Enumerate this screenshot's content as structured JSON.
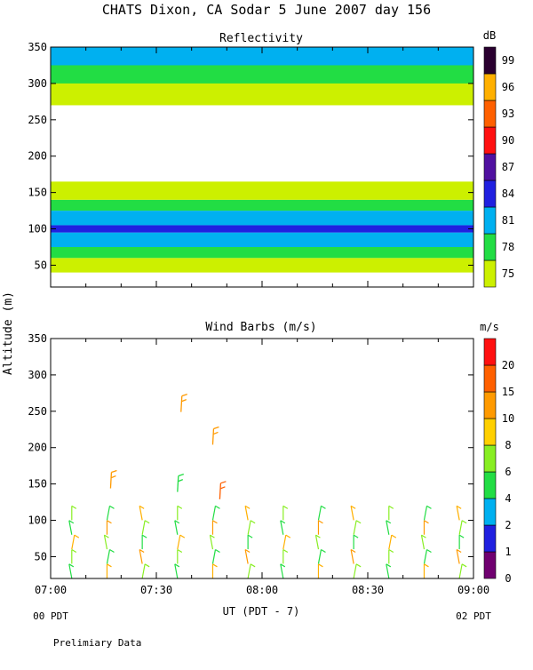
{
  "title": "CHATS Dixon, CA  Sodar    5 June 2007   day 156",
  "footer_note": "Prelimiary Data",
  "chart_data": [
    {
      "type": "heatmap",
      "title": "Reflectivity",
      "colorbar_unit": "dB",
      "x_ticks": [
        "07:00",
        "07:30",
        "08:00",
        "08:30",
        "09:00"
      ],
      "x_range": [
        "07:00",
        "09:00"
      ],
      "y_ticks": [
        50,
        100,
        150,
        200,
        250,
        300,
        350
      ],
      "ylim": [
        20,
        350
      ],
      "colorbar_levels": [
        {
          "label": "75",
          "color": "#ccf000"
        },
        {
          "label": "78",
          "color": "#22dd44"
        },
        {
          "label": "81",
          "color": "#00b0f0"
        },
        {
          "label": "84",
          "color": "#2020e0"
        },
        {
          "label": "87",
          "color": "#5010a0"
        },
        {
          "label": "90",
          "color": "#ff1010"
        },
        {
          "label": "93",
          "color": "#ff6000"
        },
        {
          "label": "96",
          "color": "#ffb000"
        },
        {
          "label": "99",
          "color": "#2a0030"
        }
      ],
      "bands_db": [
        {
          "y_range": [
            40,
            60
          ],
          "level": "75"
        },
        {
          "y_range": [
            60,
            75
          ],
          "level": "78"
        },
        {
          "y_range": [
            75,
            95
          ],
          "level": "81"
        },
        {
          "y_range": [
            95,
            105
          ],
          "level": "84"
        },
        {
          "y_range": [
            105,
            125
          ],
          "level": "81"
        },
        {
          "y_range": [
            125,
            140
          ],
          "level": "78"
        },
        {
          "y_range": [
            140,
            165
          ],
          "level": "75"
        },
        {
          "y_range": [
            270,
            350
          ],
          "level": "75"
        },
        {
          "y_range": [
            300,
            350
          ],
          "level": "78"
        },
        {
          "y_range": [
            325,
            350
          ],
          "level": "81"
        }
      ]
    },
    {
      "type": "scatter",
      "title": "Wind Barbs (m/s)",
      "colorbar_unit": "m/s",
      "ylabel": "Altitude (m)",
      "xlabel": "UT  (PDT - 7)",
      "x_ticks": [
        "07:00",
        "07:30",
        "08:00",
        "08:30",
        "09:00"
      ],
      "x_sub_labels": {
        "left": "00 PDT",
        "right": "02 PDT"
      },
      "x_range": [
        "07:00",
        "09:00"
      ],
      "y_ticks": [
        50,
        100,
        150,
        200,
        250,
        300,
        350
      ],
      "ylim": [
        20,
        350
      ],
      "colorbar_levels": [
        {
          "label": "0",
          "color": "#700070"
        },
        {
          "label": "1",
          "color": "#2020e0"
        },
        {
          "label": "2",
          "color": "#00b0f0"
        },
        {
          "label": "4",
          "color": "#22dd44"
        },
        {
          "label": "6",
          "color": "#88ee22"
        },
        {
          "label": "8",
          "color": "#ffd000"
        },
        {
          "label": "10",
          "color": "#ff9a00"
        },
        {
          "label": "15",
          "color": "#ff6000"
        },
        {
          "label": "20",
          "color": "#ff1010"
        }
      ],
      "barb_columns_time": [
        "07:06",
        "07:16",
        "07:26",
        "07:36",
        "07:46",
        "07:56",
        "08:06",
        "08:16",
        "08:26",
        "08:36",
        "08:46",
        "08:56"
      ],
      "barb_altitudes_m": [
        30,
        50,
        70,
        90,
        110
      ],
      "upper_barbs": [
        {
          "time": "07:17",
          "altitude": 155,
          "speed_class": "10"
        },
        {
          "time": "07:37",
          "altitude": 260,
          "speed_class": "10"
        },
        {
          "time": "07:46",
          "altitude": 215,
          "speed_class": "10"
        },
        {
          "time": "07:48",
          "altitude": 140,
          "speed_class": "15"
        },
        {
          "time": "07:36",
          "altitude": 150,
          "speed_class": "4"
        }
      ]
    }
  ]
}
